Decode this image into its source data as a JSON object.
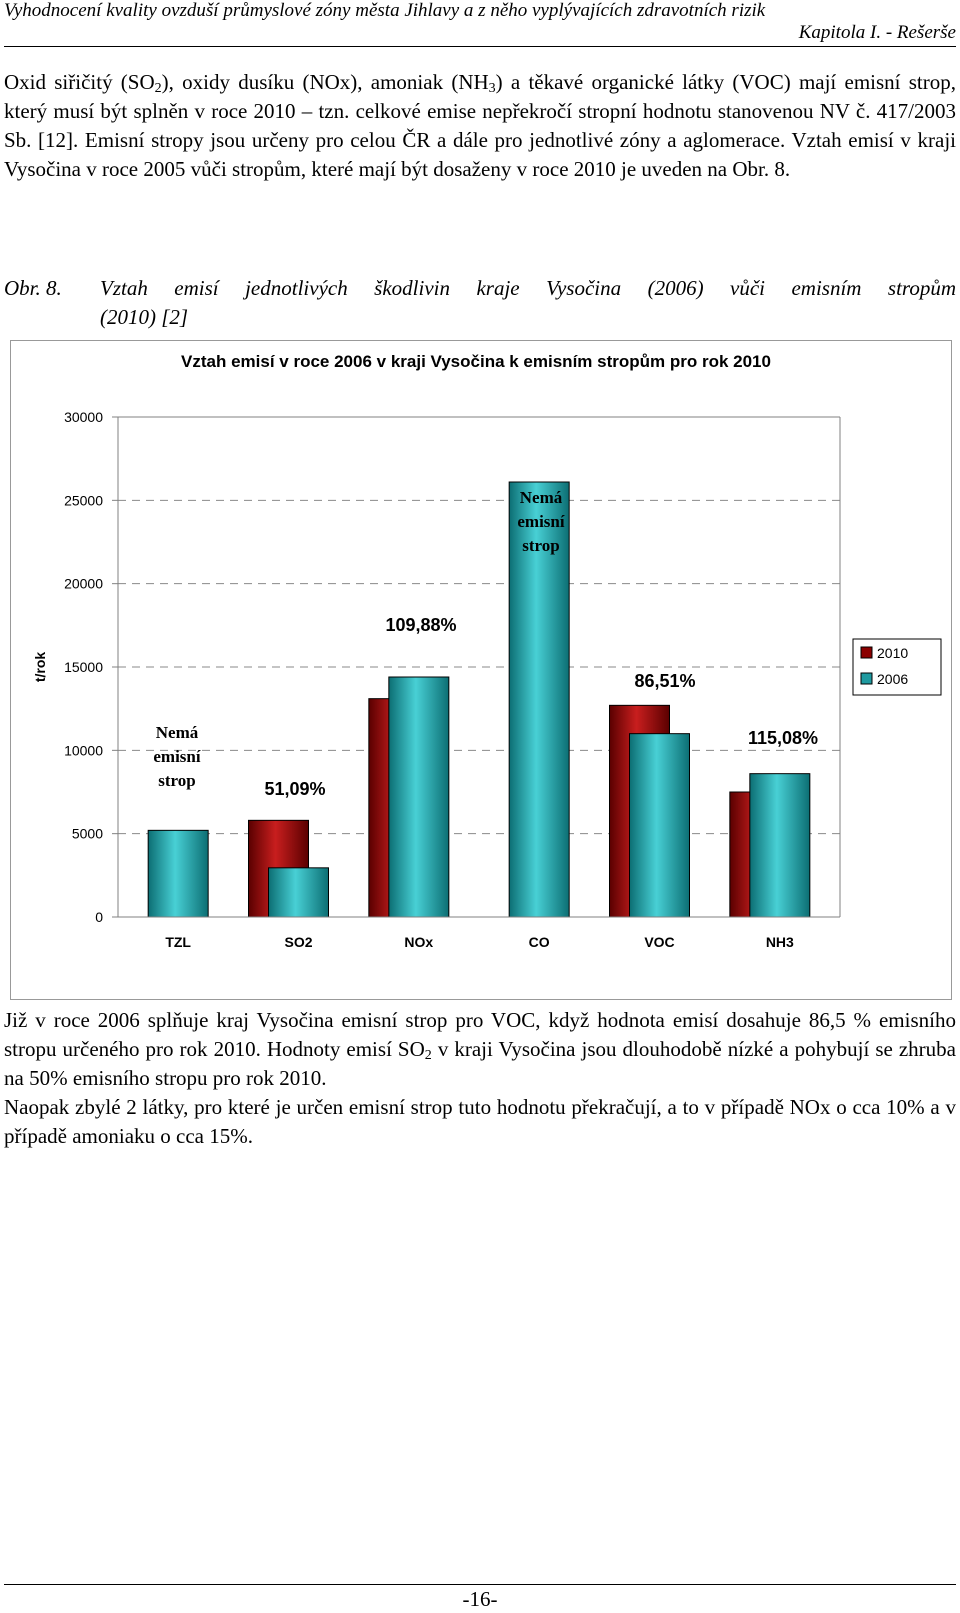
{
  "header": {
    "title": "Vyhodnocení kvality ovzduší průmyslové zóny města Jihlavy a z něho vyplývajících zdravotních rizik",
    "chapter": "Kapitola I. - Rešerše"
  },
  "intro": {
    "t1": "Oxid siřičitý (SO",
    "s1": "2",
    "t2": "), oxidy dusíku (NOx), amoniak (NH",
    "s2": "3",
    "t3": ") a těkavé organické látky (VOC) mají emisní strop, který musí být splněn v roce 2010 – tzn. celkové emise nepřekročí stropní hodnotu stanovenou NV č. 417/2003 Sb. [12]. Emisní stropy jsou určeny pro celou ČR a dále pro jednotlivé zóny a aglomerace. Vztah emisí v kraji Vysočina v roce 2005 vůči stropům, které mají být dosaženy v roce 2010 je uveden na Obr. 8."
  },
  "caption": {
    "number": "Obr. 8.",
    "line1": "Vztah emisí jednotlivých škodlivin  kraje Vysočina (2006) vůči emisním stropům",
    "line2": "(2010) [2]"
  },
  "chart_data": {
    "type": "bar",
    "title": "Vztah emisí v roce 2006 v kraji Vysočina k emisním stropům pro rok 2010",
    "ylabel": "t/rok",
    "xlabel": "",
    "ylim": [
      0,
      30000
    ],
    "yticks": [
      0,
      5000,
      10000,
      15000,
      20000,
      25000,
      30000
    ],
    "categories": [
      "TZL",
      "SO2",
      "NOx",
      "CO",
      "VOC",
      "NH3"
    ],
    "grid": true,
    "legend_position": "right",
    "series": [
      {
        "name": "2010",
        "color": "#8b0000",
        "values": [
          null,
          5800,
          13100,
          null,
          12700,
          7500
        ]
      },
      {
        "name": "2006",
        "color": "#1f9aa0",
        "values": [
          5200,
          2950,
          14400,
          26100,
          11000,
          8600
        ]
      }
    ],
    "annotations": [
      {
        "category": "TZL",
        "lines": [
          "Nemá",
          "emisní",
          "strop"
        ],
        "style": "serif"
      },
      {
        "category": "SO2",
        "lines": [
          "51,09%"
        ],
        "style": "sans"
      },
      {
        "category": "NOx",
        "lines": [
          "109,88%"
        ],
        "style": "sans"
      },
      {
        "category": "CO",
        "lines": [
          "Nemá",
          "emisní",
          "strop"
        ],
        "style": "serif"
      },
      {
        "category": "VOC",
        "lines": [
          "86,51%"
        ],
        "style": "sans"
      },
      {
        "category": "NH3",
        "lines": [
          "115,08%"
        ],
        "style": "sans"
      }
    ]
  },
  "conclusion": {
    "p1a": "Již v roce 2006 splňuje kraj Vysočina emisní strop pro VOC, když hodnota emisí dosahuje 86,5 % emisního stropu určeného pro rok 2010. Hodnoty emisí SO",
    "p1s": "2",
    "p1b": " v kraji Vysočina jsou dlouhodobě nízké a pohybují se zhruba na 50% emisního stropu pro rok 2010.",
    "p2": "Naopak zbylé 2 látky, pro které je určen emisní strop tuto hodnotu překračují, a to v případě NOx o cca 10% a v případě amoniaku o cca 15%."
  },
  "footer": {
    "page_number": "-16-"
  }
}
